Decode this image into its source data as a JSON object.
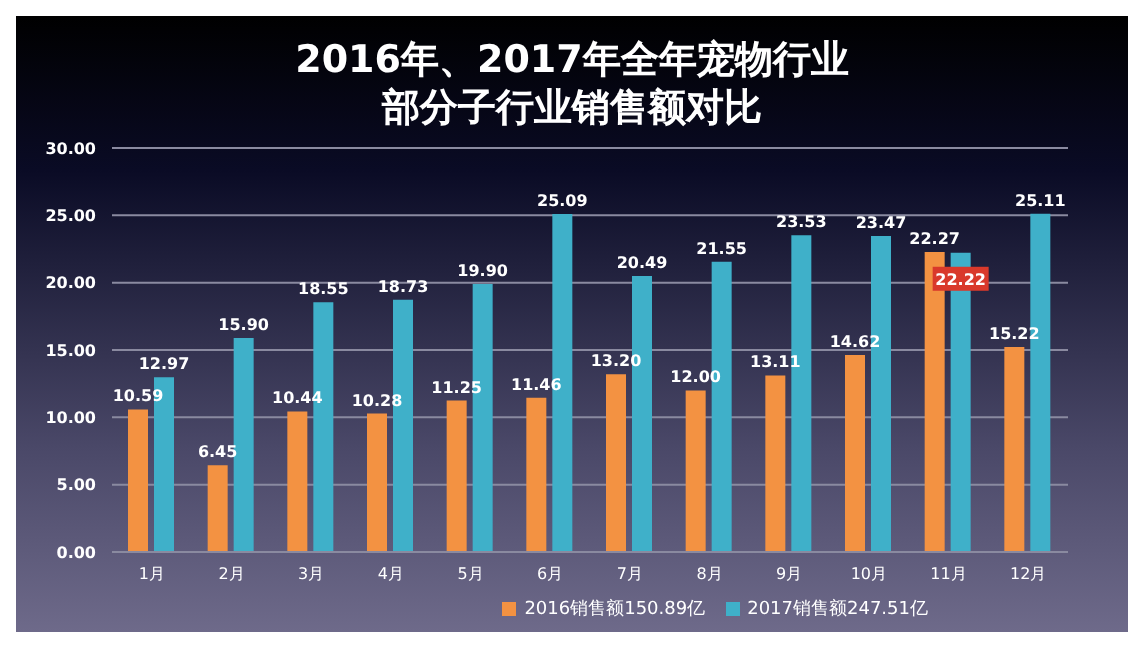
{
  "chart_data": {
    "type": "bar",
    "title": "2016年、2017年全年宠物行业部分子行业销售额对比",
    "categories": [
      "1月",
      "2月",
      "3月",
      "4月",
      "5月",
      "6月",
      "7月",
      "8月",
      "9月",
      "10月",
      "11月",
      "12月"
    ],
    "series": [
      {
        "name": "2016销售额150.89亿",
        "color": "#f39242",
        "values": [
          10.59,
          6.45,
          10.44,
          10.28,
          11.25,
          11.46,
          13.2,
          12.0,
          13.11,
          14.62,
          22.27,
          15.22
        ],
        "value_labels": [
          "10.59",
          "6.45",
          "10.44",
          "10.28",
          "11.25",
          "11.46",
          "13.20",
          "12.00",
          "13.11",
          "14.62",
          "22.27",
          "15.22"
        ]
      },
      {
        "name": "2017销售额247.51亿",
        "color": "#3fb0c9",
        "values": [
          12.97,
          15.9,
          18.55,
          18.73,
          19.9,
          25.09,
          20.49,
          21.55,
          23.53,
          23.47,
          22.22,
          25.11
        ],
        "value_labels": [
          "12.97",
          "15.90",
          "18.55",
          "18.73",
          "19.90",
          "25.09",
          "20.49",
          "21.55",
          "23.53",
          "23.47",
          "22.22",
          "25.11"
        ]
      }
    ],
    "ylim": [
      0,
      30
    ],
    "yticks": [
      {
        "value": 0,
        "label": "0.00"
      },
      {
        "value": 5,
        "label": "5.00"
      },
      {
        "value": 10,
        "label": "10.00"
      },
      {
        "value": 15,
        "label": "15.00"
      },
      {
        "value": 20,
        "label": "20.00"
      },
      {
        "value": 25,
        "label": "25.00"
      },
      {
        "value": 30,
        "label": "30.00"
      }
    ],
    "grid": "y",
    "legend": "bottom right"
  }
}
